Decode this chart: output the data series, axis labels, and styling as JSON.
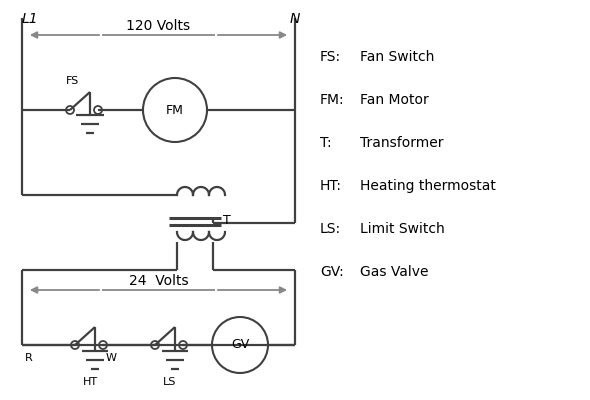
{
  "background_color": "#ffffff",
  "line_color": "#404040",
  "arrow_color": "#888888",
  "text_color": "#000000",
  "legend_items": [
    [
      "FS:",
      "Fan Switch"
    ],
    [
      "FM:",
      "Fan Motor"
    ],
    [
      "T:",
      "Transformer"
    ],
    [
      "HT:",
      "Heating thermostat"
    ],
    [
      "LS:",
      "Limit Switch"
    ],
    [
      "GV:",
      "Gas Valve"
    ]
  ],
  "label_L1": "L1",
  "label_N": "N",
  "label_120V": "120 Volts",
  "label_24V": "24  Volts",
  "label_T": "T",
  "label_FS": "FS",
  "label_FM": "FM",
  "label_GV": "GV",
  "label_R": "R",
  "label_W": "W",
  "label_HT": "HT",
  "label_LS": "LS"
}
